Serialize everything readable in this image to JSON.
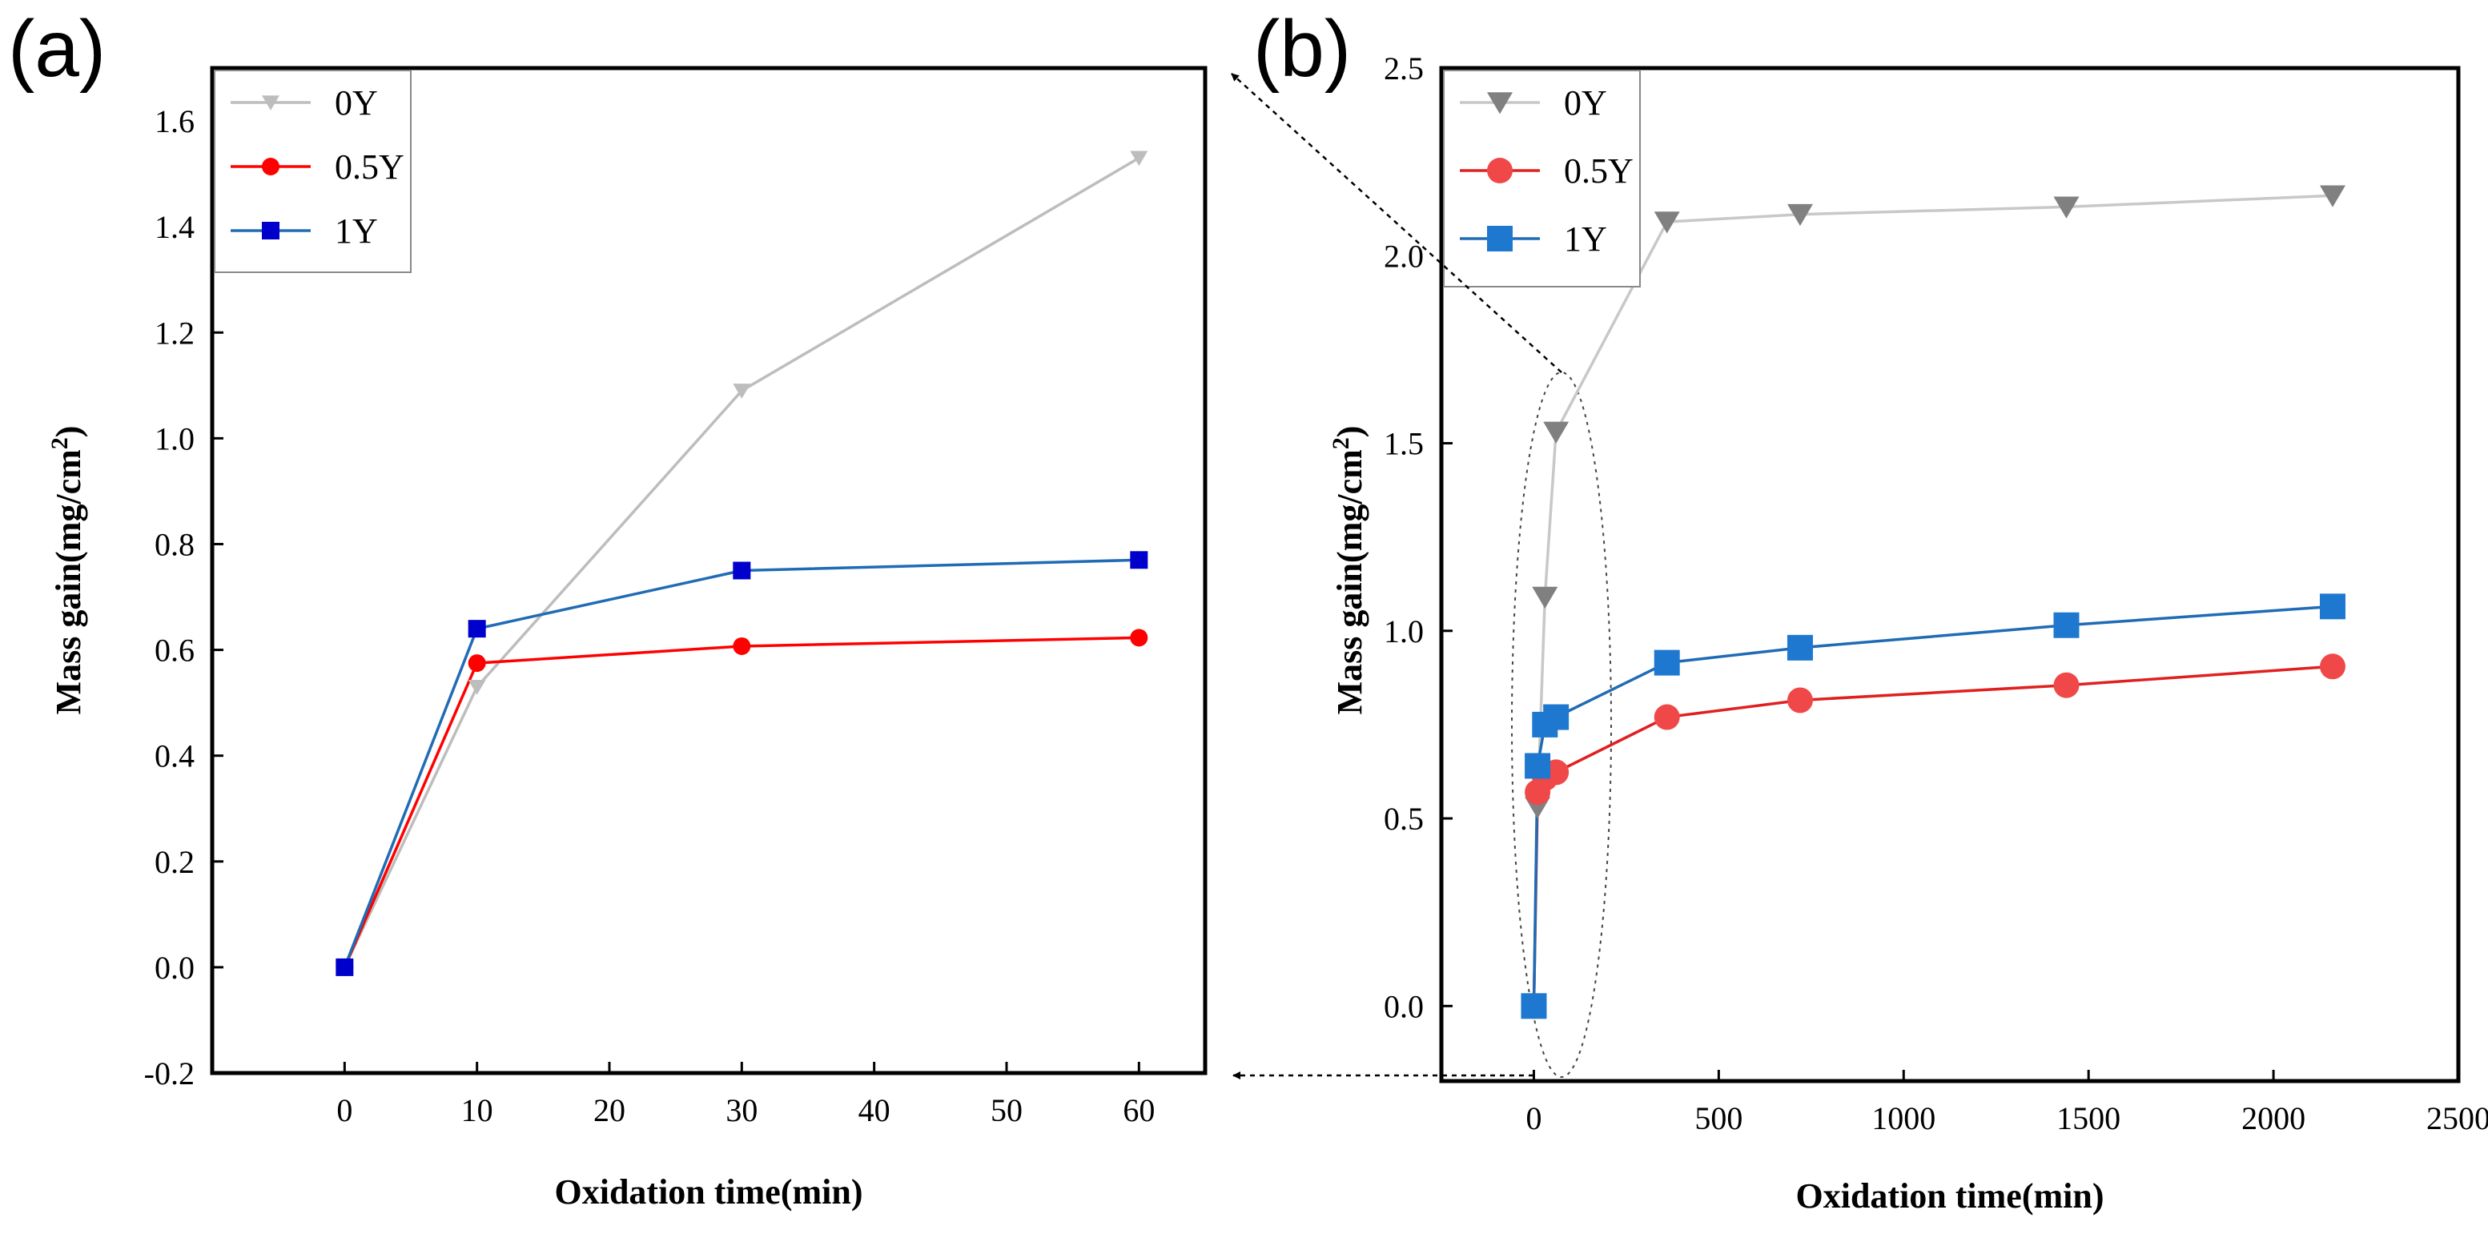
{
  "chart_data": [
    {
      "type": "line",
      "panel_label": "(a)",
      "xlabel": "Oxidation time(min)",
      "ylabel": "Mass gain(mg/cm",
      "ylabel_sup": "2",
      "ylabel_close": ")",
      "xlim": [
        -10,
        65
      ],
      "ylim": [
        -0.2,
        1.7
      ],
      "xticks": [
        "0",
        "10",
        "20",
        "30",
        "40",
        "50",
        "60"
      ],
      "xtick_values": [
        0,
        10,
        20,
        30,
        40,
        50,
        60
      ],
      "yticks": [
        "-0.2",
        "0.0",
        "0.2",
        "0.4",
        "0.6",
        "0.8",
        "1.0",
        "1.2",
        "1.4",
        "1.6"
      ],
      "ytick_values": [
        -0.2,
        0.0,
        0.2,
        0.4,
        0.6,
        0.8,
        1.0,
        1.2,
        1.4,
        1.6
      ],
      "legend_position": "top-left",
      "series": [
        {
          "name": "0Y",
          "marker": "triangle-down",
          "color": "#bdbdbd",
          "x": [
            0,
            10,
            30,
            60
          ],
          "y": [
            0.0,
            0.53,
            1.09,
            1.53
          ]
        },
        {
          "name": "0.5Y",
          "marker": "circle",
          "color": "#ff0000",
          "x": [
            0,
            10,
            30,
            60
          ],
          "y": [
            0.0,
            0.575,
            0.607,
            0.623
          ]
        },
        {
          "name": "1Y",
          "marker": "square",
          "color": "#0000cc",
          "line_color": "#1f6bb5",
          "x": [
            0,
            10,
            30,
            60
          ],
          "y": [
            0.0,
            0.64,
            0.75,
            0.77
          ]
        }
      ]
    },
    {
      "type": "line",
      "panel_label": "(b)",
      "xlabel": "Oxidation time(min)",
      "ylabel": "Mass gain(mg/cm",
      "ylabel_sup": "2",
      "ylabel_close": ")",
      "xlim": [
        -250,
        2500
      ],
      "ylim": [
        -0.2,
        2.5
      ],
      "xticks": [
        "0",
        "500",
        "1000",
        "1500",
        "2000",
        "2500"
      ],
      "xtick_values": [
        0,
        500,
        1000,
        1500,
        2000,
        2500
      ],
      "yticks": [
        "0.0",
        "0.5",
        "1.0",
        "1.5",
        "2.0",
        "2.5"
      ],
      "ytick_values": [
        0.0,
        0.5,
        1.0,
        1.5,
        2.0,
        2.5
      ],
      "legend_position": "top-left",
      "series": [
        {
          "name": "0Y",
          "marker": "triangle-down",
          "color": "#808080",
          "line_color": "#c8c8c8",
          "x": [
            0,
            10,
            30,
            60,
            360,
            720,
            1440,
            2160
          ],
          "y": [
            0.0,
            0.53,
            1.09,
            1.53,
            2.09,
            2.11,
            2.13,
            2.16
          ]
        },
        {
          "name": "0.5Y",
          "marker": "circle",
          "color": "#f04848",
          "line_color": "#e02020",
          "x": [
            0,
            10,
            30,
            60,
            360,
            720,
            1440,
            2160
          ],
          "y": [
            0.0,
            0.57,
            0.607,
            0.623,
            0.77,
            0.815,
            0.855,
            0.905
          ]
        },
        {
          "name": "1Y",
          "marker": "square",
          "color": "#1f78d0",
          "line_color": "#1f6bb5",
          "x": [
            0,
            10,
            30,
            60,
            360,
            720,
            1440,
            2160
          ],
          "y": [
            0.0,
            0.64,
            0.75,
            0.77,
            0.915,
            0.955,
            1.015,
            1.065
          ]
        }
      ]
    }
  ]
}
